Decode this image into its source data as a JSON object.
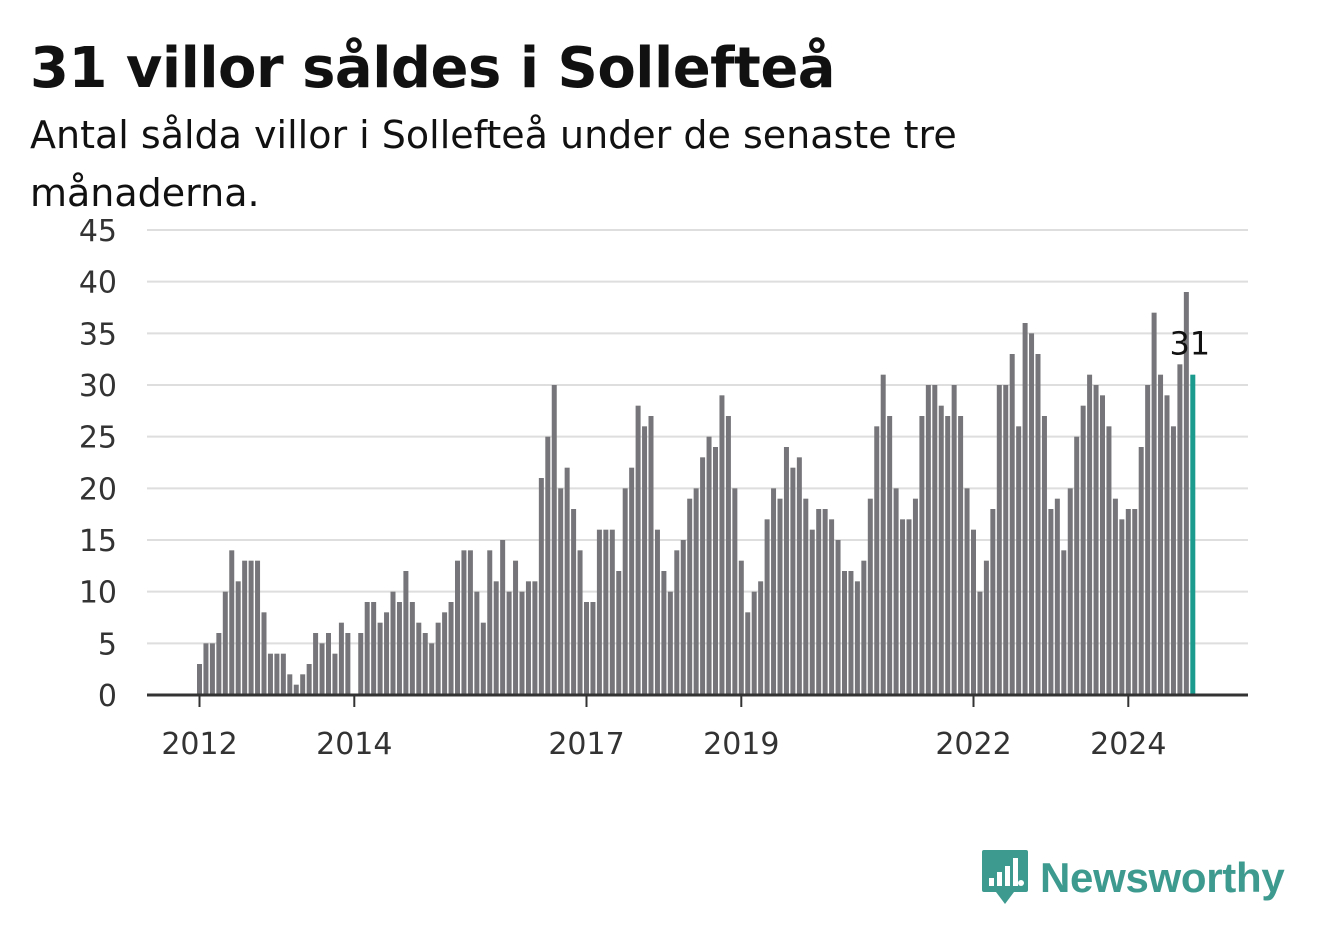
{
  "chart_data": {
    "type": "bar",
    "title": "31 villor såldes i Sollefteå",
    "subtitle": "Antal sålda villor i Sollefteå under de senaste tre månaderna.",
    "xlabel": "",
    "ylabel": "",
    "ylim": [
      0,
      45
    ],
    "yticks": [
      0,
      5,
      10,
      15,
      20,
      25,
      30,
      35,
      40,
      45
    ],
    "grid": true,
    "legend": "none",
    "x_start": "2012-01",
    "x_tick_labels": [
      {
        "label": "2012",
        "index": 0
      },
      {
        "label": "2014",
        "index": 24
      },
      {
        "label": "2017",
        "index": 60
      },
      {
        "label": "2019",
        "index": 84
      },
      {
        "label": "2022",
        "index": 120
      },
      {
        "label": "2024",
        "index": 144
      }
    ],
    "values": [
      3,
      5,
      5,
      6,
      10,
      14,
      11,
      13,
      13,
      13,
      8,
      4,
      4,
      4,
      2,
      1,
      2,
      3,
      6,
      5,
      6,
      4,
      7,
      6,
      0,
      6,
      9,
      9,
      7,
      8,
      10,
      9,
      12,
      9,
      7,
      6,
      5,
      7,
      8,
      9,
      13,
      14,
      14,
      10,
      7,
      14,
      11,
      15,
      10,
      13,
      10,
      11,
      11,
      21,
      25,
      30,
      20,
      22,
      18,
      14,
      9,
      9,
      16,
      16,
      16,
      12,
      20,
      22,
      28,
      26,
      27,
      16,
      12,
      10,
      14,
      15,
      19,
      20,
      23,
      25,
      24,
      29,
      27,
      20,
      13,
      8,
      10,
      11,
      17,
      20,
      19,
      24,
      22,
      23,
      19,
      16,
      18,
      18,
      17,
      15,
      12,
      12,
      11,
      13,
      19,
      26,
      31,
      27,
      20,
      17,
      17,
      19,
      27,
      30,
      30,
      28,
      27,
      30,
      27,
      20,
      16,
      10,
      13,
      18,
      30,
      30,
      33,
      26,
      36,
      35,
      33,
      27,
      18,
      19,
      14,
      20,
      25,
      28,
      31,
      30,
      29,
      26,
      19,
      17,
      18,
      18,
      24,
      30,
      37,
      31,
      29,
      26,
      32,
      39,
      31
    ],
    "highlight_index": 154,
    "highlight_label": "31",
    "bar_color": "#76767a",
    "highlight_color": "#1b9a8e",
    "grid_color": "#dedede",
    "axis_color": "#333333"
  },
  "brand": {
    "name": "Newsworthy",
    "logo_icon": "newsworthy-logo-icon",
    "color": "#3d9a8f"
  }
}
